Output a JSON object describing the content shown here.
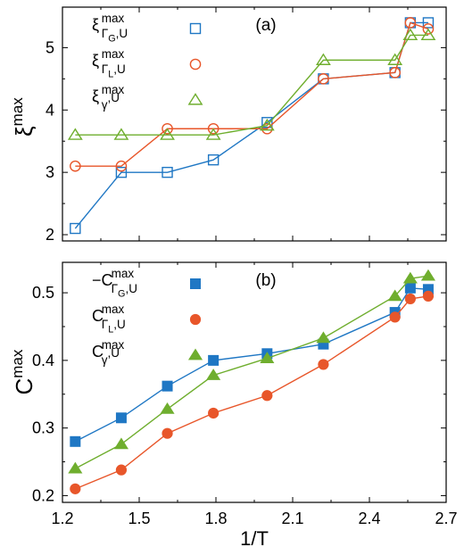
{
  "colors": {
    "series1": "#1f77c4",
    "series2": "#e8562a",
    "series3": "#6fae2e",
    "axis": "#000000"
  },
  "chart_data": [
    {
      "type": "line",
      "panel_label": "(a)",
      "ylabel": "ξ",
      "ylabel_sup": "max",
      "xlim": [
        1.2,
        2.7
      ],
      "ylim": [
        1.9,
        5.65
      ],
      "yticks": [
        "2",
        "3",
        "4",
        "5"
      ],
      "ytick_values": [
        2,
        3,
        4,
        5
      ],
      "marker_fill": "open",
      "legend_position": "top-left",
      "series": [
        {
          "legend": {
            "base": "ξ",
            "sup": "max",
            "sub": "Γ",
            "subsub": "G",
            "tail": ",U"
          },
          "marker": "square",
          "x": [
            1.25,
            1.43,
            1.61,
            1.79,
            2.0,
            2.22,
            2.5,
            2.56,
            2.63
          ],
          "values": [
            2.1,
            3.0,
            3.0,
            3.2,
            3.8,
            4.5,
            4.6,
            5.4,
            5.4
          ]
        },
        {
          "legend": {
            "base": "ξ",
            "sup": "max",
            "sub": "Γ",
            "subsub": "L",
            "tail": ",U"
          },
          "marker": "circle",
          "x": [
            1.25,
            1.43,
            1.61,
            1.79,
            2.0,
            2.22,
            2.5,
            2.56,
            2.63
          ],
          "values": [
            3.1,
            3.1,
            3.7,
            3.7,
            3.7,
            4.5,
            4.6,
            5.4,
            5.3
          ]
        },
        {
          "legend": {
            "base": "ξ",
            "sup": "max",
            "sub": "γ",
            "subsub": "",
            "tail": ",U"
          },
          "marker": "triangle",
          "x": [
            1.25,
            1.43,
            1.61,
            1.79,
            2.0,
            2.22,
            2.5,
            2.56,
            2.63
          ],
          "values": [
            3.6,
            3.6,
            3.6,
            3.6,
            3.75,
            4.8,
            4.8,
            5.2,
            5.2
          ]
        }
      ]
    },
    {
      "type": "line",
      "panel_label": "(b)",
      "ylabel": "C",
      "ylabel_sup": "max",
      "xlabel": "1/T",
      "xlim": [
        1.2,
        2.7
      ],
      "ylim": [
        0.19,
        0.545
      ],
      "xticks": [
        "1.2",
        "1.5",
        "1.8",
        "2.1",
        "2.4",
        "2.7"
      ],
      "xtick_values": [
        1.2,
        1.5,
        1.8,
        2.1,
        2.4,
        2.7
      ],
      "yticks": [
        "0.2",
        "0.3",
        "0.4",
        "0.5"
      ],
      "ytick_values": [
        0.2,
        0.3,
        0.4,
        0.5
      ],
      "marker_fill": "filled",
      "legend_position": "top-left",
      "series": [
        {
          "legend": {
            "base": "−C",
            "sup": "max",
            "sub": "Γ",
            "subsub": "G",
            "tail": ",U"
          },
          "marker": "square",
          "x": [
            1.25,
            1.43,
            1.61,
            1.79,
            2.0,
            2.22,
            2.5,
            2.56,
            2.63
          ],
          "values": [
            0.28,
            0.315,
            0.362,
            0.4,
            0.41,
            0.424,
            0.471,
            0.507,
            0.505
          ]
        },
        {
          "legend": {
            "base": "C",
            "sup": "max",
            "sub": "Γ",
            "subsub": "L",
            "tail": ",U"
          },
          "marker": "circle",
          "x": [
            1.25,
            1.43,
            1.61,
            1.79,
            2.0,
            2.22,
            2.5,
            2.56,
            2.63
          ],
          "values": [
            0.21,
            0.238,
            0.292,
            0.322,
            0.348,
            0.394,
            0.464,
            0.491,
            0.495
          ]
        },
        {
          "legend": {
            "base": "C",
            "sup": "max",
            "sub": "γ",
            "subsub": "",
            "tail": ",U"
          },
          "marker": "triangle",
          "x": [
            1.25,
            1.43,
            1.61,
            1.79,
            2.0,
            2.22,
            2.5,
            2.56,
            2.63
          ],
          "values": [
            0.24,
            0.276,
            0.328,
            0.378,
            0.403,
            0.433,
            0.495,
            0.521,
            0.525
          ]
        }
      ]
    }
  ]
}
